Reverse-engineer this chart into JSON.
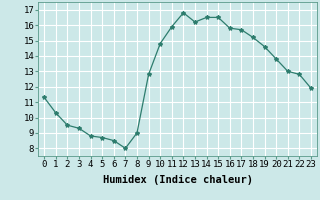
{
  "x": [
    0,
    1,
    2,
    3,
    4,
    5,
    6,
    7,
    8,
    9,
    10,
    11,
    12,
    13,
    14,
    15,
    16,
    17,
    18,
    19,
    20,
    21,
    22,
    23
  ],
  "y": [
    11.3,
    10.3,
    9.5,
    9.3,
    8.8,
    8.7,
    8.5,
    8.0,
    9.0,
    12.8,
    14.8,
    15.9,
    16.8,
    16.2,
    16.5,
    16.5,
    15.8,
    15.7,
    15.2,
    14.6,
    13.8,
    13.0,
    12.8,
    11.9
  ],
  "xlabel": "Humidex (Indice chaleur)",
  "xlim": [
    -0.5,
    23.5
  ],
  "ylim": [
    7.5,
    17.5
  ],
  "yticks": [
    8,
    9,
    10,
    11,
    12,
    13,
    14,
    15,
    16,
    17
  ],
  "xticks": [
    0,
    1,
    2,
    3,
    4,
    5,
    6,
    7,
    8,
    9,
    10,
    11,
    12,
    13,
    14,
    15,
    16,
    17,
    18,
    19,
    20,
    21,
    22,
    23
  ],
  "xtick_labels": [
    "0",
    "1",
    "2",
    "3",
    "4",
    "5",
    "6",
    "7",
    "8",
    "9",
    "10",
    "11",
    "12",
    "13",
    "14",
    "15",
    "16",
    "17",
    "18",
    "19",
    "20",
    "21",
    "22",
    "23"
  ],
  "line_color": "#2e7d6e",
  "marker": "*",
  "bg_color": "#cce8e8",
  "grid_color": "#ffffff",
  "xlabel_fontsize": 7.5,
  "tick_fontsize": 6.5
}
